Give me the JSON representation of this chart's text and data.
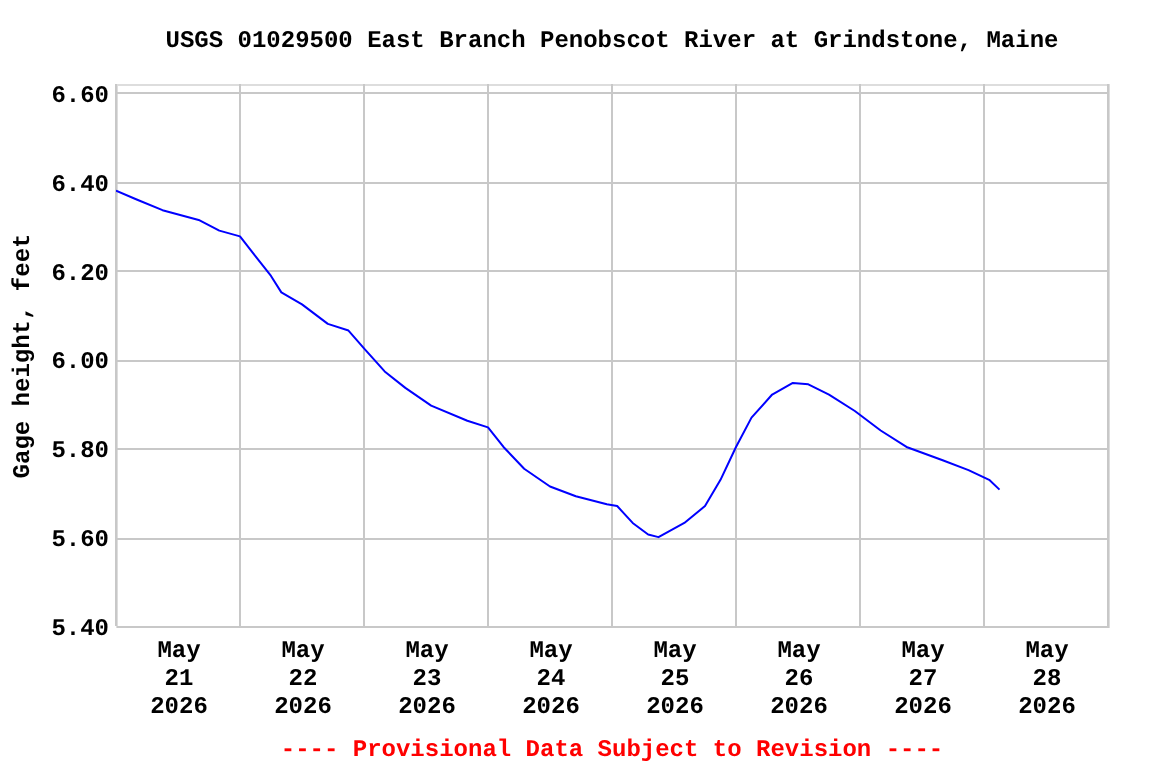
{
  "chart_data": {
    "type": "line",
    "title": "USGS 01029500 East Branch Penobscot River at Grindstone, Maine",
    "ylabel": "Gage height, feet",
    "annotations": [
      "---- Provisional Data Subject to Revision ----"
    ],
    "x": [
      "2026-05-21T00:00",
      "2026-05-21T04:00",
      "2026-05-21T09:00",
      "2026-05-21T16:00",
      "2026-05-21T20:00",
      "2026-05-22T00:00",
      "2026-05-22T02:00",
      "2026-05-22T06:00",
      "2026-05-22T08:00",
      "2026-05-22T12:00",
      "2026-05-22T17:00",
      "2026-05-22T21:00",
      "2026-05-23T00:00",
      "2026-05-23T04:00",
      "2026-05-23T08:00",
      "2026-05-23T13:00",
      "2026-05-23T20:00",
      "2026-05-24T00:00",
      "2026-05-24T03:00",
      "2026-05-24T07:00",
      "2026-05-24T12:00",
      "2026-05-24T17:00",
      "2026-05-24T23:00",
      "2026-05-25T01:00",
      "2026-05-25T04:00",
      "2026-05-25T07:00",
      "2026-05-25T09:00",
      "2026-05-25T14:00",
      "2026-05-25T18:00",
      "2026-05-25T21:00",
      "2026-05-26T00:00",
      "2026-05-26T03:00",
      "2026-05-26T07:00",
      "2026-05-26T11:00",
      "2026-05-26T14:00",
      "2026-05-26T18:00",
      "2026-05-26T23:00",
      "2026-05-27T04:00",
      "2026-05-27T09:00",
      "2026-05-27T16:00",
      "2026-05-27T21:00",
      "2026-05-28T01:00",
      "2026-05-28T03:00"
    ],
    "series": [
      {
        "color": "#0000ff",
        "values": [
          6.38,
          6.36,
          6.336,
          6.314,
          6.29,
          6.277,
          6.247,
          6.188,
          6.151,
          6.124,
          6.08,
          6.065,
          6.025,
          5.973,
          5.936,
          5.896,
          5.862,
          5.847,
          5.803,
          5.754,
          5.714,
          5.692,
          5.674,
          5.67,
          5.632,
          5.606,
          5.6,
          5.632,
          5.67,
          5.729,
          5.803,
          5.869,
          5.921,
          5.947,
          5.944,
          5.921,
          5.884,
          5.84,
          5.803,
          5.773,
          5.751,
          5.729,
          5.707
        ]
      }
    ],
    "xlim": [
      "2026-05-21T00:00",
      "2026-05-29T00:00"
    ],
    "xticks": [
      {
        "value": "2026-05-21T00:00",
        "label": null
      },
      {
        "value": "2026-05-21T12:00",
        "label": "May\n21\n2026"
      },
      {
        "value": "2026-05-22T00:00",
        "label": null
      },
      {
        "value": "2026-05-22T12:00",
        "label": "May\n22\n2026"
      },
      {
        "value": "2026-05-23T00:00",
        "label": null
      },
      {
        "value": "2026-05-23T12:00",
        "label": "May\n23\n2026"
      },
      {
        "value": "2026-05-24T00:00",
        "label": null
      },
      {
        "value": "2026-05-24T12:00",
        "label": "May\n24\n2026"
      },
      {
        "value": "2026-05-25T00:00",
        "label": null
      },
      {
        "value": "2026-05-25T12:00",
        "label": "May\n25\n2026"
      },
      {
        "value": "2026-05-26T00:00",
        "label": null
      },
      {
        "value": "2026-05-26T12:00",
        "label": "May\n26\n2026"
      },
      {
        "value": "2026-05-27T00:00",
        "label": null
      },
      {
        "value": "2026-05-27T12:00",
        "label": "May\n27\n2026"
      },
      {
        "value": "2026-05-28T00:00",
        "label": null
      },
      {
        "value": "2026-05-28T12:00",
        "label": "May\n28\n2026"
      },
      {
        "value": "2026-05-29T00:00",
        "label": null
      }
    ],
    "ylim": [
      5.4,
      6.62
    ],
    "yticks": [
      {
        "value": 5.4,
        "label": "5.40"
      },
      {
        "value": 5.6,
        "label": "5.60"
      },
      {
        "value": 5.8,
        "label": "5.80"
      },
      {
        "value": 6.0,
        "label": "6.00"
      },
      {
        "value": 6.2,
        "label": "6.20"
      },
      {
        "value": 6.4,
        "label": "6.40"
      },
      {
        "value": 6.6,
        "label": "6.60"
      }
    ],
    "grid": true,
    "marker": "none",
    "line_style": "solid"
  }
}
